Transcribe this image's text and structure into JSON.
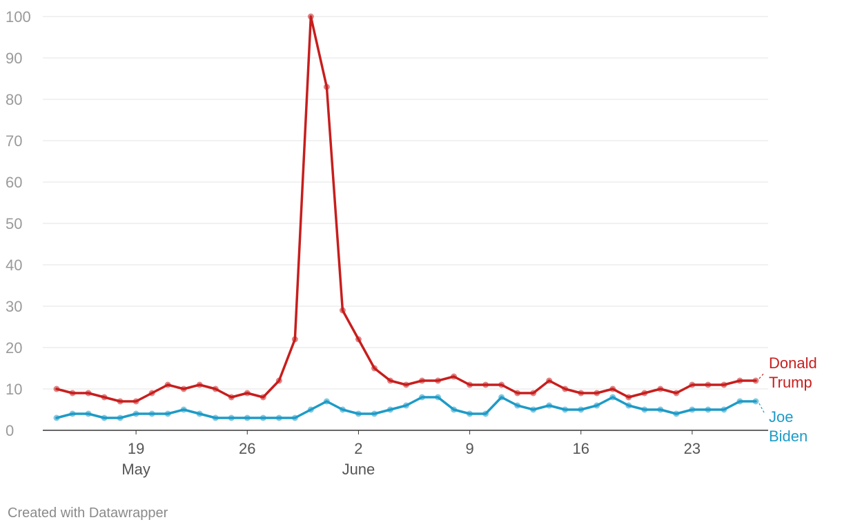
{
  "chart_data": {
    "type": "line",
    "x_start": "2020-05-13",
    "x": [
      1,
      2,
      3,
      4,
      5,
      6,
      7,
      8,
      9,
      10,
      11,
      12,
      13,
      14,
      15,
      16,
      17,
      18,
      19,
      20,
      21,
      22,
      23,
      24,
      25,
      26,
      27,
      28,
      29,
      30,
      31,
      32,
      33,
      34,
      35,
      36,
      37,
      38,
      39,
      40,
      41,
      42,
      43,
      44,
      45
    ],
    "series": [
      {
        "name": "Donald Trump",
        "label_lines": [
          "Donald",
          "Trump"
        ],
        "color": "#c71e1d",
        "values": [
          10,
          9,
          9,
          8,
          7,
          7,
          9,
          11,
          10,
          11,
          10,
          8,
          9,
          8,
          12,
          22,
          100,
          83,
          29,
          22,
          15,
          12,
          11,
          12,
          12,
          13,
          11,
          11,
          11,
          9,
          9,
          12,
          10,
          9,
          9,
          10,
          8,
          9,
          10,
          9,
          11,
          11,
          11,
          12,
          12
        ]
      },
      {
        "name": "Joe Biden",
        "label_lines": [
          "Joe",
          "Biden"
        ],
        "color": "#1d9bc7",
        "values": [
          3,
          4,
          4,
          3,
          3,
          4,
          4,
          4,
          5,
          4,
          3,
          3,
          3,
          3,
          3,
          3,
          5,
          7,
          5,
          4,
          4,
          5,
          6,
          8,
          8,
          5,
          4,
          4,
          8,
          6,
          5,
          6,
          5,
          5,
          6,
          8,
          6,
          5,
          5,
          4,
          5,
          5,
          5,
          7,
          7
        ]
      }
    ],
    "ylim": [
      0,
      100
    ],
    "yticks": [
      0,
      10,
      20,
      30,
      40,
      50,
      60,
      70,
      80,
      90,
      100
    ],
    "xticks": [
      {
        "x": 6,
        "label": "19",
        "sublabel": "May"
      },
      {
        "x": 13,
        "label": "26",
        "sublabel": ""
      },
      {
        "x": 20,
        "label": "2",
        "sublabel": "June"
      },
      {
        "x": 27,
        "label": "9",
        "sublabel": ""
      },
      {
        "x": 34,
        "label": "16",
        "sublabel": ""
      },
      {
        "x": 41,
        "label": "23",
        "sublabel": ""
      }
    ],
    "grid": true,
    "legend": "direct labels at line ends (right)"
  },
  "footer": {
    "credit": "Created with Datawrapper"
  }
}
